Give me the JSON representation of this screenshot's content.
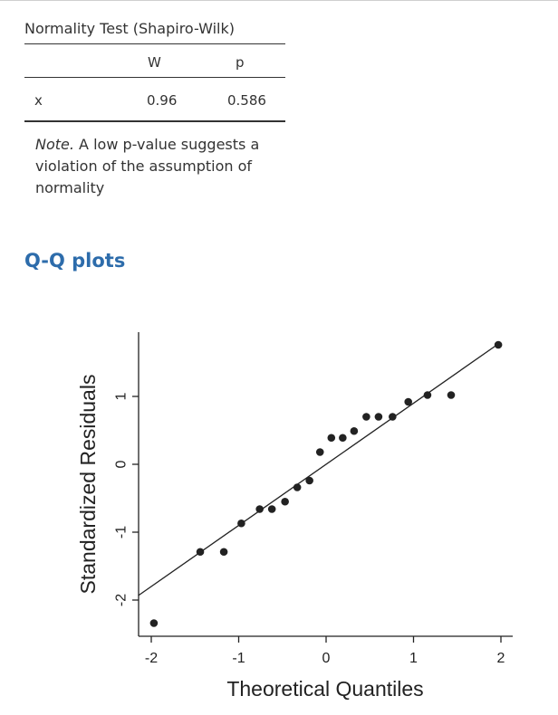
{
  "table": {
    "title": "Normality Test (Shapiro-Wilk)",
    "columns": [
      "",
      "W",
      "p"
    ],
    "rows": [
      {
        "label": "x",
        "W": "0.96",
        "p": "0.586"
      }
    ],
    "note_label": "Note.",
    "note_text": " A low p-value suggests a violation of the assumption of normality"
  },
  "section": {
    "heading": "Q-Q plots"
  },
  "chart_data": {
    "type": "scatter",
    "xlabel": "Theoretical Quantiles",
    "ylabel": "Standardized Residuals",
    "xlim": [
      -2.15,
      2.15
    ],
    "ylim": [
      -2.5,
      1.98
    ],
    "xticks": [
      -2,
      -1,
      0,
      1,
      2
    ],
    "yticks": [
      -2,
      -1,
      0,
      1
    ],
    "grid": false,
    "reference_line": {
      "slope": 0.9,
      "intercept": 0.0
    },
    "points": [
      {
        "x": -1.97,
        "y": -2.34
      },
      {
        "x": -1.44,
        "y": -1.29
      },
      {
        "x": -1.17,
        "y": -1.29
      },
      {
        "x": -0.97,
        "y": -0.87
      },
      {
        "x": -0.76,
        "y": -0.66
      },
      {
        "x": -0.62,
        "y": -0.66
      },
      {
        "x": -0.47,
        "y": -0.55
      },
      {
        "x": -0.33,
        "y": -0.34
      },
      {
        "x": -0.19,
        "y": -0.24
      },
      {
        "x": -0.07,
        "y": 0.18
      },
      {
        "x": 0.06,
        "y": 0.39
      },
      {
        "x": 0.19,
        "y": 0.39
      },
      {
        "x": 0.32,
        "y": 0.49
      },
      {
        "x": 0.46,
        "y": 0.7
      },
      {
        "x": 0.6,
        "y": 0.7
      },
      {
        "x": 0.76,
        "y": 0.7
      },
      {
        "x": 0.94,
        "y": 0.92
      },
      {
        "x": 1.16,
        "y": 1.02
      },
      {
        "x": 1.43,
        "y": 1.02
      },
      {
        "x": 1.97,
        "y": 1.76
      }
    ]
  }
}
